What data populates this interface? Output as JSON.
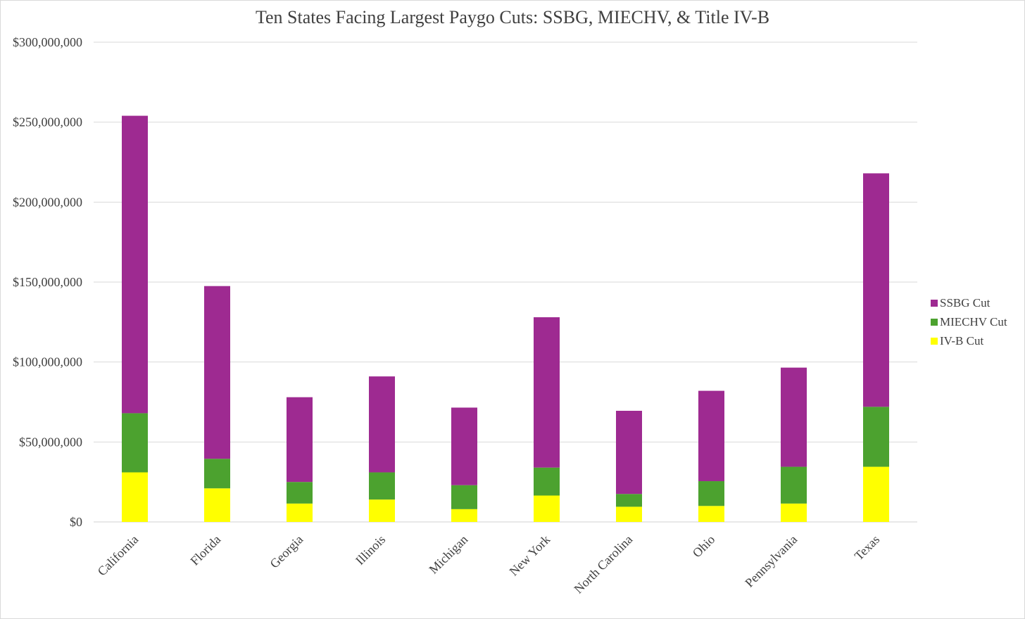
{
  "chart_data": {
    "type": "bar",
    "stacked": true,
    "title": "Ten States Facing Largest Paygo Cuts: SSBG, MIECHV, & Title IV-B",
    "xlabel": "",
    "ylabel": "",
    "ylim": [
      0,
      300000000
    ],
    "yticks": [
      0,
      50000000,
      100000000,
      150000000,
      200000000,
      250000000,
      300000000
    ],
    "ytick_labels": [
      "$0",
      "$50,000,000",
      "$100,000,000",
      "$150,000,000",
      "$200,000,000",
      "$250,000,000",
      "$300,000,000"
    ],
    "grid": true,
    "legend_position": "right",
    "categories": [
      "California",
      "Florida",
      "Georgia",
      "Illinois",
      "Michigan",
      "New York",
      "North Carolina",
      "Ohio",
      "Pennsylvania",
      "Texas"
    ],
    "series": [
      {
        "name": "IV-B Cut",
        "color": "#FFFF00",
        "values": [
          31000000,
          21000000,
          11500000,
          14000000,
          8000000,
          16500000,
          9500000,
          10000000,
          11500000,
          34500000
        ]
      },
      {
        "name": "MIECHV Cut",
        "color": "#4CA22F",
        "values": [
          37000000,
          18500000,
          13500000,
          17000000,
          15000000,
          17500000,
          8000000,
          15500000,
          23000000,
          37500000
        ]
      },
      {
        "name": "SSBG Cut",
        "color": "#9E2A91",
        "values": [
          186000000,
          108000000,
          53000000,
          60000000,
          48500000,
          94000000,
          52000000,
          56500000,
          62000000,
          146000000
        ]
      }
    ],
    "legend_order": [
      "SSBG Cut",
      "MIECHV Cut",
      "IV-B Cut"
    ]
  }
}
